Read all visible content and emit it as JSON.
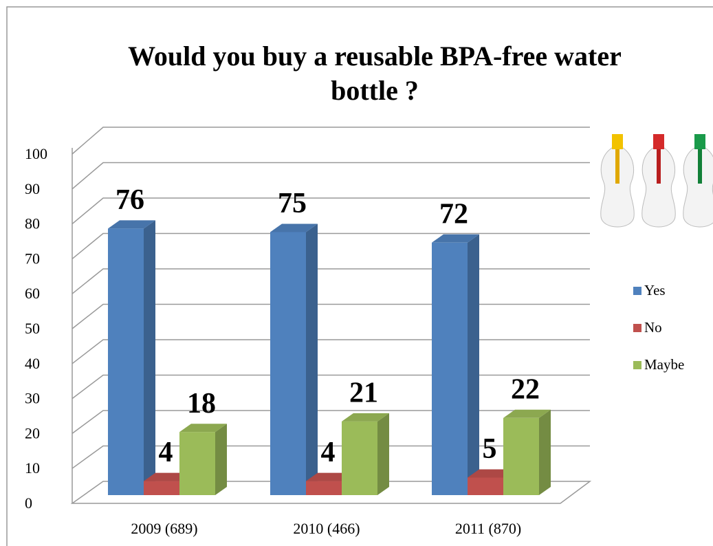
{
  "chart_data": {
    "type": "bar3d",
    "title": "Would you buy a reusable BPA-free water bottle ?",
    "categories": [
      "2009 (689)",
      "2010 (466)",
      "2011 (870)"
    ],
    "series": [
      {
        "name": "Yes",
        "color": "#4f81bd",
        "values": [
          76,
          75,
          72
        ]
      },
      {
        "name": "No",
        "color": "#c0504d",
        "values": [
          4,
          4,
          5
        ]
      },
      {
        "name": "Maybe",
        "color": "#9bbb59",
        "values": [
          18,
          21,
          22
        ]
      }
    ],
    "ylim": [
      0,
      100
    ],
    "yticks": [
      0,
      10,
      20,
      30,
      40,
      50,
      60,
      70,
      80,
      90,
      100
    ],
    "grid": true,
    "legend": "right"
  }
}
